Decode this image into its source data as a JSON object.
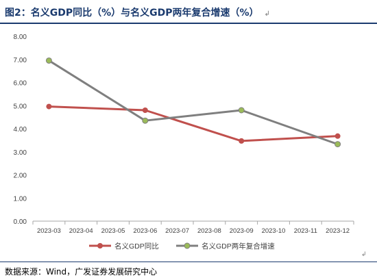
{
  "figure": {
    "title": "图2：名义GDP同比（%）与名义GDP两年复合增速（%）",
    "para_mark": "↲",
    "source": "数据来源：Wind，广发证券发展研究中心",
    "end_mark": "↲"
  },
  "chart_data": {
    "type": "line",
    "title": "图2：名义GDP同比（%）与名义GDP两年复合增速（%）",
    "xlabel": "",
    "ylabel": "",
    "categories": [
      "2023-03",
      "2023-04",
      "2023-05",
      "2023-06",
      "2023-07",
      "2023-08",
      "2023-09",
      "2023-10",
      "2023-11",
      "2023-12"
    ],
    "ylim": [
      0,
      8
    ],
    "yticks": [
      "0.00",
      "1.00",
      "2.00",
      "3.00",
      "4.00",
      "5.00",
      "6.00",
      "7.00",
      "8.00"
    ],
    "grid": false,
    "legend_position": "bottom",
    "series": [
      {
        "name": "名义GDP同比",
        "color": "#c0504d",
        "values": [
          4.96,
          null,
          null,
          4.8,
          null,
          null,
          3.47,
          null,
          null,
          3.68
        ]
      },
      {
        "name": "名义GDP两年复合增速",
        "color": "#7f7f7f",
        "marker_color": "#9bbb59",
        "values": [
          6.95,
          null,
          null,
          4.35,
          null,
          null,
          4.8,
          null,
          null,
          3.33
        ]
      }
    ]
  }
}
